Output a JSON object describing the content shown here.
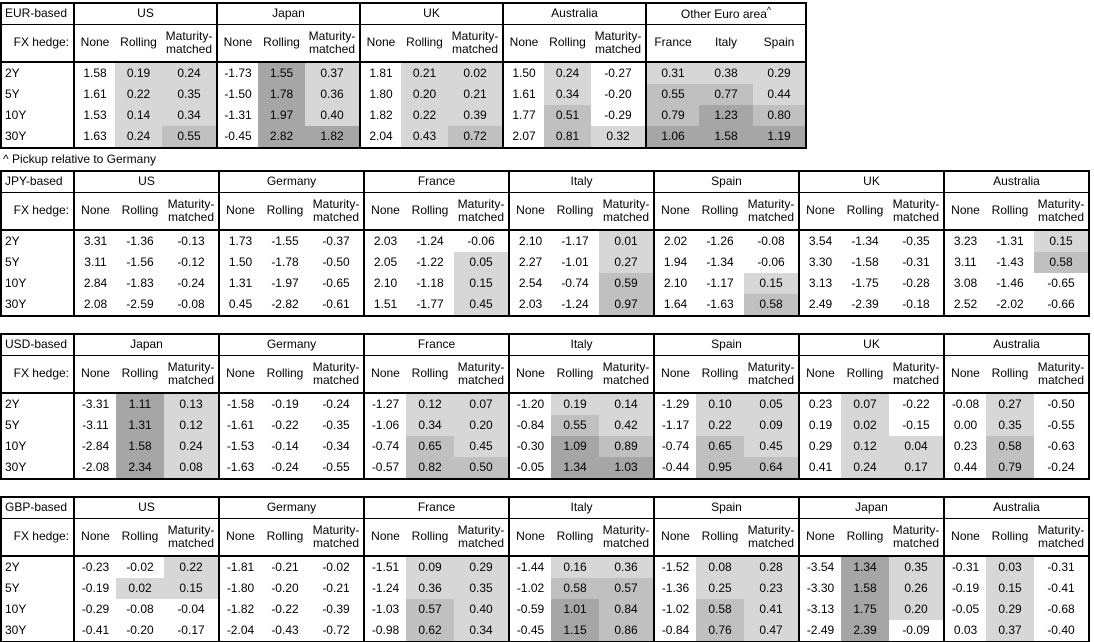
{
  "footnote": {
    "text": "^ Pickup relative to Germany"
  },
  "labels": {
    "fx_hedge": "FX hedge:",
    "hedge_types": [
      "None",
      "Rolling",
      "Maturity-matched"
    ],
    "tenors": [
      "2Y",
      "5Y",
      "10Y",
      "30Y"
    ]
  },
  "shading": {
    "rule": "positive hedged values shaded by magnitude: 0-0.5 light, 0.5-1.0 medium, >=1.0 dark; None column and negatives unshaded",
    "thresholds": [
      0,
      0.5,
      1.0
    ],
    "colors": {
      "l1": "#d7d7d7",
      "l2": "#c0c0c0",
      "l3": "#a6a6a6",
      "none": "#ffffff"
    }
  },
  "tables": [
    {
      "base": "EUR-based",
      "groups": [
        {
          "name": "US",
          "rows": [
            [
              "1.58",
              "0.19",
              "0.24"
            ],
            [
              "1.61",
              "0.22",
              "0.35"
            ],
            [
              "1.53",
              "0.14",
              "0.34"
            ],
            [
              "1.63",
              "0.24",
              "0.55"
            ]
          ]
        },
        {
          "name": "Japan",
          "rows": [
            [
              "-1.73",
              "1.55",
              "0.37"
            ],
            [
              "-1.50",
              "1.78",
              "0.36"
            ],
            [
              "-1.31",
              "1.97",
              "0.40"
            ],
            [
              "-0.45",
              "2.82",
              "1.82"
            ]
          ]
        },
        {
          "name": "UK",
          "rows": [
            [
              "1.81",
              "0.21",
              "0.02"
            ],
            [
              "1.80",
              "0.20",
              "0.21"
            ],
            [
              "1.82",
              "0.22",
              "0.39"
            ],
            [
              "2.04",
              "0.43",
              "0.72"
            ]
          ]
        },
        {
          "name": "Australia",
          "rows": [
            [
              "1.50",
              "0.24",
              "-0.27"
            ],
            [
              "1.61",
              "0.34",
              "-0.20"
            ],
            [
              "1.77",
              "0.51",
              "-0.29"
            ],
            [
              "2.07",
              "0.81",
              "0.32"
            ]
          ]
        },
        {
          "name": "Other Euro area",
          "sup": "^",
          "cols": [
            "France",
            "Italy",
            "Spain"
          ],
          "shade_all": true,
          "rows": [
            [
              "0.31",
              "0.38",
              "0.29"
            ],
            [
              "0.55",
              "0.77",
              "0.44"
            ],
            [
              "0.79",
              "1.23",
              "0.80"
            ],
            [
              "1.06",
              "1.58",
              "1.19"
            ]
          ]
        }
      ]
    },
    {
      "base": "JPY-based",
      "groups": [
        {
          "name": "US",
          "rows": [
            [
              "3.31",
              "-1.36",
              "-0.13"
            ],
            [
              "3.11",
              "-1.56",
              "-0.12"
            ],
            [
              "2.84",
              "-1.83",
              "-0.24"
            ],
            [
              "2.08",
              "-2.59",
              "-0.08"
            ]
          ]
        },
        {
          "name": "Germany",
          "rows": [
            [
              "1.73",
              "-1.55",
              "-0.37"
            ],
            [
              "1.50",
              "-1.78",
              "-0.50"
            ],
            [
              "1.31",
              "-1.97",
              "-0.65"
            ],
            [
              "0.45",
              "-2.82",
              "-0.61"
            ]
          ]
        },
        {
          "name": "France",
          "rows": [
            [
              "2.03",
              "-1.24",
              "-0.06"
            ],
            [
              "2.05",
              "-1.22",
              "0.05"
            ],
            [
              "2.10",
              "-1.18",
              "0.15"
            ],
            [
              "1.51",
              "-1.77",
              "0.45"
            ]
          ]
        },
        {
          "name": "Italy",
          "rows": [
            [
              "2.10",
              "-1.17",
              "0.01"
            ],
            [
              "2.27",
              "-1.01",
              "0.27"
            ],
            [
              "2.54",
              "-0.74",
              "0.59"
            ],
            [
              "2.03",
              "-1.24",
              "0.97"
            ]
          ]
        },
        {
          "name": "Spain",
          "rows": [
            [
              "2.02",
              "-1.26",
              "-0.08"
            ],
            [
              "1.94",
              "-1.34",
              "-0.06"
            ],
            [
              "2.10",
              "-1.17",
              "0.15"
            ],
            [
              "1.64",
              "-1.63",
              "0.58"
            ]
          ]
        },
        {
          "name": "UK",
          "rows": [
            [
              "3.54",
              "-1.34",
              "-0.35"
            ],
            [
              "3.30",
              "-1.58",
              "-0.31"
            ],
            [
              "3.13",
              "-1.75",
              "-0.28"
            ],
            [
              "2.49",
              "-2.39",
              "-0.18"
            ]
          ]
        },
        {
          "name": "Australia",
          "rows": [
            [
              "3.23",
              "-1.31",
              "0.15"
            ],
            [
              "3.11",
              "-1.43",
              "0.58"
            ],
            [
              "3.08",
              "-1.46",
              "-0.65"
            ],
            [
              "2.52",
              "-2.02",
              "-0.66"
            ]
          ]
        }
      ]
    },
    {
      "base": "USD-based",
      "groups": [
        {
          "name": "Japan",
          "rows": [
            [
              "-3.31",
              "1.11",
              "0.13"
            ],
            [
              "-3.11",
              "1.31",
              "0.12"
            ],
            [
              "-2.84",
              "1.58",
              "0.24"
            ],
            [
              "-2.08",
              "2.34",
              "0.08"
            ]
          ]
        },
        {
          "name": "Germany",
          "rows": [
            [
              "-1.58",
              "-0.19",
              "-0.24"
            ],
            [
              "-1.61",
              "-0.22",
              "-0.35"
            ],
            [
              "-1.53",
              "-0.14",
              "-0.34"
            ],
            [
              "-1.63",
              "-0.24",
              "-0.55"
            ]
          ]
        },
        {
          "name": "France",
          "rows": [
            [
              "-1.27",
              "0.12",
              "0.07"
            ],
            [
              "-1.06",
              "0.34",
              "0.20"
            ],
            [
              "-0.74",
              "0.65",
              "0.45"
            ],
            [
              "-0.57",
              "0.82",
              "0.50"
            ]
          ]
        },
        {
          "name": "Italy",
          "rows": [
            [
              "-1.20",
              "0.19",
              "0.14"
            ],
            [
              "-0.84",
              "0.55",
              "0.42"
            ],
            [
              "-0.30",
              "1.09",
              "0.89"
            ],
            [
              "-0.05",
              "1.34",
              "1.03"
            ]
          ]
        },
        {
          "name": "Spain",
          "rows": [
            [
              "-1.29",
              "0.10",
              "0.05"
            ],
            [
              "-1.17",
              "0.22",
              "0.09"
            ],
            [
              "-0.74",
              "0.65",
              "0.45"
            ],
            [
              "-0.44",
              "0.95",
              "0.64"
            ]
          ]
        },
        {
          "name": "UK",
          "rows": [
            [
              "0.23",
              "0.07",
              "-0.22"
            ],
            [
              "0.19",
              "0.02",
              "-0.15"
            ],
            [
              "0.29",
              "0.12",
              "0.04"
            ],
            [
              "0.41",
              "0.24",
              "0.17"
            ]
          ]
        },
        {
          "name": "Australia",
          "rows": [
            [
              "-0.08",
              "0.27",
              "-0.50"
            ],
            [
              "0.00",
              "0.35",
              "-0.55"
            ],
            [
              "0.23",
              "0.58",
              "-0.63"
            ],
            [
              "0.44",
              "0.79",
              "-0.24"
            ]
          ]
        }
      ]
    },
    {
      "base": "GBP-based",
      "groups": [
        {
          "name": "US",
          "rows": [
            [
              "-0.23",
              "-0.02",
              "0.22"
            ],
            [
              "-0.19",
              "0.02",
              "0.15"
            ],
            [
              "-0.29",
              "-0.08",
              "-0.04"
            ],
            [
              "-0.41",
              "-0.20",
              "-0.17"
            ]
          ]
        },
        {
          "name": "Germany",
          "rows": [
            [
              "-1.81",
              "-0.21",
              "-0.02"
            ],
            [
              "-1.80",
              "-0.20",
              "-0.21"
            ],
            [
              "-1.82",
              "-0.22",
              "-0.39"
            ],
            [
              "-2.04",
              "-0.43",
              "-0.72"
            ]
          ]
        },
        {
          "name": "France",
          "rows": [
            [
              "-1.51",
              "0.09",
              "0.29"
            ],
            [
              "-1.24",
              "0.36",
              "0.35"
            ],
            [
              "-1.03",
              "0.57",
              "0.40"
            ],
            [
              "-0.98",
              "0.62",
              "0.34"
            ]
          ]
        },
        {
          "name": "Italy",
          "rows": [
            [
              "-1.44",
              "0.16",
              "0.36"
            ],
            [
              "-1.02",
              "0.58",
              "0.57"
            ],
            [
              "-0.59",
              "1.01",
              "0.84"
            ],
            [
              "-0.45",
              "1.15",
              "0.86"
            ]
          ]
        },
        {
          "name": "Spain",
          "rows": [
            [
              "-1.52",
              "0.08",
              "0.28"
            ],
            [
              "-1.36",
              "0.25",
              "0.23"
            ],
            [
              "-1.02",
              "0.58",
              "0.41"
            ],
            [
              "-0.84",
              "0.76",
              "0.47"
            ]
          ]
        },
        {
          "name": "Japan",
          "rows": [
            [
              "-3.54",
              "1.34",
              "0.35"
            ],
            [
              "-3.30",
              "1.58",
              "0.26"
            ],
            [
              "-3.13",
              "1.75",
              "0.20"
            ],
            [
              "-2.49",
              "2.39",
              "-0.09"
            ]
          ]
        },
        {
          "name": "Australia",
          "rows": [
            [
              "-0.31",
              "0.03",
              "-0.31"
            ],
            [
              "-0.19",
              "0.15",
              "-0.41"
            ],
            [
              "-0.05",
              "0.29",
              "-0.68"
            ],
            [
              "0.03",
              "0.37",
              "-0.40"
            ]
          ]
        }
      ]
    }
  ]
}
